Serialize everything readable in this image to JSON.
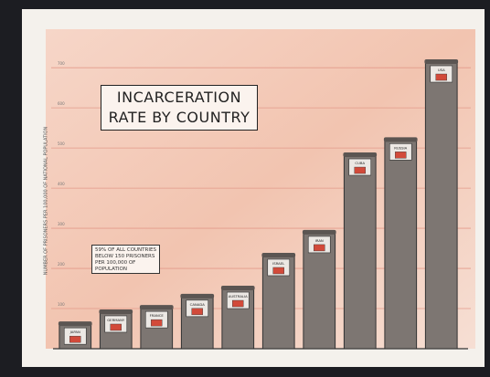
{
  "chart_data": {
    "type": "bar",
    "title": "INCARCERATION RATE BY COUNTRY",
    "y_label": "NUMBER OF PRISONERS PER 100,000 OF NATIONAL POPULATION",
    "annotation": "59% OF ALL COUNTRIES BELOW 150 PRISONERS PER 100,000 OF POPULATION",
    "categories": [
      "JAPAN",
      "GERMANY",
      "FRANCE",
      "CANADA",
      "AUSTRALIA",
      "ISRAEL",
      "IRAN",
      "CUBA",
      "RUSSIA",
      "USA"
    ],
    "values": [
      61,
      91,
      102,
      130,
      150,
      232,
      289,
      482,
      520,
      714
    ],
    "color": "#7d7672",
    "ylim": [
      0,
      780
    ],
    "yticks": [
      100,
      200,
      300,
      400,
      500,
      600,
      700
    ],
    "grid": true
  }
}
